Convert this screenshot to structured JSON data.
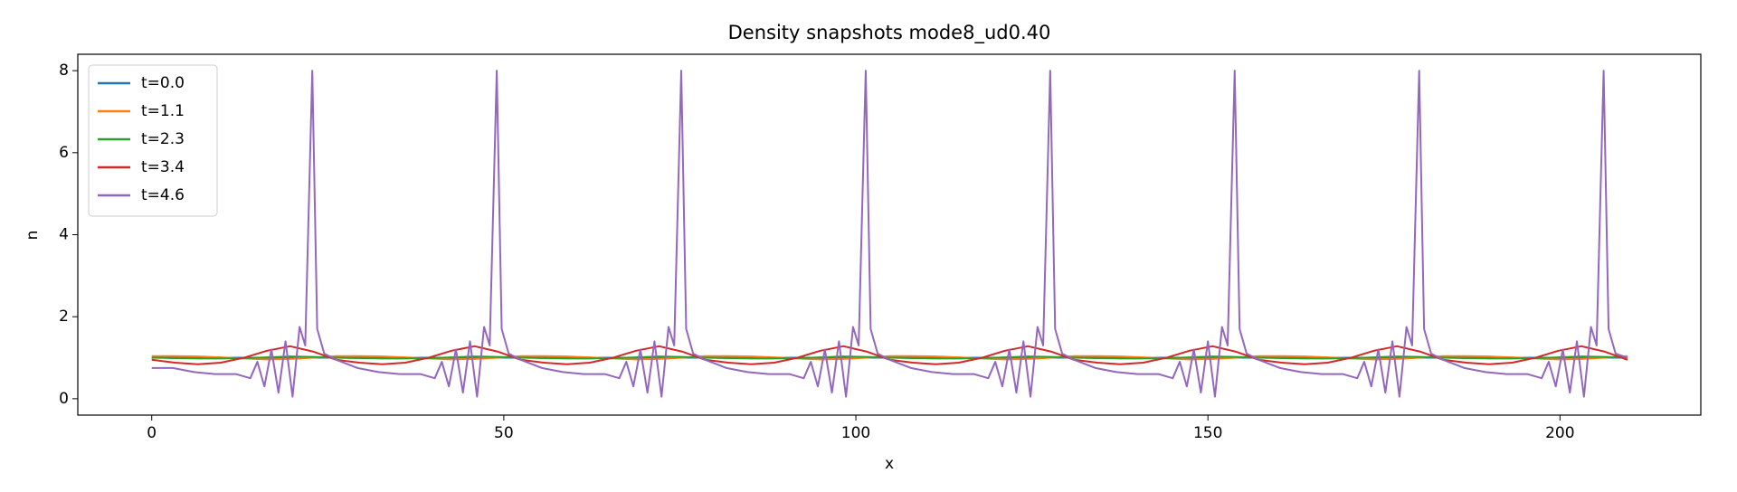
{
  "chart_data": {
    "type": "line",
    "title": "Density snapshots  mode8_ud0.40",
    "xlabel": "x",
    "ylabel": "n",
    "xlim": [
      -10.5,
      220
    ],
    "xticks": [
      0,
      50,
      100,
      150,
      200
    ],
    "ylim": [
      -0.4,
      8.4
    ],
    "yticks": [
      0,
      2,
      4,
      6,
      8
    ],
    "legend": "upper left",
    "grid": false,
    "series": [
      {
        "name": "t=0.0",
        "color": "#1f77b4",
        "x": [
          0,
          3.275,
          6.55,
          9.825,
          13.1,
          16.375,
          19.65,
          22.925,
          26.2,
          29.475,
          32.75,
          36.025,
          39.3,
          42.575,
          45.85,
          49.125,
          52.4,
          55.675,
          58.95,
          62.225,
          65.5,
          68.775,
          72.05,
          75.325,
          78.6,
          81.875,
          85.15,
          88.425,
          91.7,
          94.975,
          98.25,
          101.525,
          104.8,
          108.075,
          111.35,
          114.625,
          117.9,
          121.175,
          124.45,
          127.725,
          131,
          134.275,
          137.55,
          140.825,
          144.1,
          147.375,
          150.65,
          153.925,
          157.2,
          160.475,
          163.75,
          167.025,
          170.3,
          173.575,
          176.85,
          180.125,
          183.4,
          186.675,
          189.95,
          193.225,
          196.5,
          199.775,
          203.05,
          206.325,
          209.6
        ],
        "values": [
          1,
          1,
          1,
          1,
          1,
          1,
          1,
          1,
          1,
          1,
          1,
          1,
          1,
          1,
          1,
          1,
          1,
          1,
          1,
          1,
          1,
          1,
          1,
          1,
          1,
          1,
          1,
          1,
          1,
          1,
          1,
          1,
          1,
          1,
          1,
          1,
          1,
          1,
          1,
          1,
          1,
          1,
          1,
          1,
          1,
          1,
          1,
          1,
          1,
          1,
          1,
          1,
          1,
          1,
          1,
          1,
          1,
          1,
          1,
          1,
          1,
          1,
          1,
          1,
          1
        ]
      },
      {
        "name": "t=1.1",
        "color": "#ff7f0e",
        "x": [
          0,
          3.275,
          6.55,
          9.825,
          13.1,
          16.375,
          19.65,
          22.925,
          26.2,
          29.475,
          32.75,
          36.025,
          39.3,
          42.575,
          45.85,
          49.125,
          52.4,
          55.675,
          58.95,
          62.225,
          65.5,
          68.775,
          72.05,
          75.325,
          78.6,
          81.875,
          85.15,
          88.425,
          91.7,
          94.975,
          98.25,
          101.525,
          104.8,
          108.075,
          111.35,
          114.625,
          117.9,
          121.175,
          124.45,
          127.725,
          131,
          134.275,
          137.55,
          140.825,
          144.1,
          147.375,
          150.65,
          153.925,
          157.2,
          160.475,
          163.75,
          167.025,
          170.3,
          173.575,
          176.85,
          180.125,
          183.4,
          186.675,
          189.95,
          193.225,
          196.5,
          199.775,
          203.05,
          206.325,
          209.6
        ],
        "values": [
          1.04,
          1.04,
          1.03,
          1.01,
          0.98,
          0.96,
          0.97,
          1.0,
          1.04,
          1.04,
          1.03,
          1.01,
          0.98,
          0.96,
          0.97,
          1.0,
          1.04,
          1.04,
          1.03,
          1.01,
          0.98,
          0.96,
          0.97,
          1.0,
          1.04,
          1.04,
          1.03,
          1.01,
          0.98,
          0.96,
          0.97,
          1.0,
          1.04,
          1.04,
          1.03,
          1.01,
          0.98,
          0.96,
          0.97,
          1.0,
          1.04,
          1.04,
          1.03,
          1.01,
          0.98,
          0.96,
          0.97,
          1.0,
          1.04,
          1.04,
          1.03,
          1.01,
          0.98,
          0.96,
          0.97,
          1.0,
          1.04,
          1.04,
          1.03,
          1.01,
          0.98,
          0.96,
          0.97,
          1.0,
          1.04
        ]
      },
      {
        "name": "t=2.3",
        "color": "#2ca02c",
        "x": [
          0,
          3.275,
          6.55,
          9.825,
          13.1,
          16.375,
          19.65,
          22.925,
          26.2,
          29.475,
          32.75,
          36.025,
          39.3,
          42.575,
          45.85,
          49.125,
          52.4,
          55.675,
          58.95,
          62.225,
          65.5,
          68.775,
          72.05,
          75.325,
          78.6,
          81.875,
          85.15,
          88.425,
          91.7,
          94.975,
          98.25,
          101.525,
          104.8,
          108.075,
          111.35,
          114.625,
          117.9,
          121.175,
          124.45,
          127.725,
          131,
          134.275,
          137.55,
          140.825,
          144.1,
          147.375,
          150.65,
          153.925,
          157.2,
          160.475,
          163.75,
          167.025,
          170.3,
          173.575,
          176.85,
          180.125,
          183.4,
          186.675,
          189.95,
          193.225,
          196.5,
          199.775,
          203.05,
          206.325,
          209.6
        ],
        "values": [
          1.0,
          0.99,
          0.98,
          0.98,
          0.99,
          1.01,
          1.03,
          1.02,
          1.0,
          0.99,
          0.98,
          0.98,
          0.99,
          1.01,
          1.03,
          1.02,
          1.0,
          0.99,
          0.98,
          0.98,
          0.99,
          1.01,
          1.03,
          1.02,
          1.0,
          0.99,
          0.98,
          0.98,
          0.99,
          1.01,
          1.03,
          1.02,
          1.0,
          0.99,
          0.98,
          0.98,
          0.99,
          1.01,
          1.03,
          1.02,
          1.0,
          0.99,
          0.98,
          0.98,
          0.99,
          1.01,
          1.03,
          1.02,
          1.0,
          0.99,
          0.98,
          0.98,
          0.99,
          1.01,
          1.03,
          1.02,
          1.0,
          0.99,
          0.98,
          0.98,
          0.99,
          1.01,
          1.03,
          1.02,
          1.0
        ]
      },
      {
        "name": "t=3.4",
        "color": "#d62728",
        "x": [
          0,
          3.275,
          6.55,
          9.825,
          13.1,
          16.375,
          19.65,
          22.925,
          26.2,
          29.475,
          32.75,
          36.025,
          39.3,
          42.575,
          45.85,
          49.125,
          52.4,
          55.675,
          58.95,
          62.225,
          65.5,
          68.775,
          72.05,
          75.325,
          78.6,
          81.875,
          85.15,
          88.425,
          91.7,
          94.975,
          98.25,
          101.525,
          104.8,
          108.075,
          111.35,
          114.625,
          117.9,
          121.175,
          124.45,
          127.725,
          131,
          134.275,
          137.55,
          140.825,
          144.1,
          147.375,
          150.65,
          153.925,
          157.2,
          160.475,
          163.75,
          167.025,
          170.3,
          173.575,
          176.85,
          180.125,
          183.4,
          186.675,
          189.95,
          193.225,
          196.5,
          199.775,
          203.05,
          206.325,
          209.6
        ],
        "values": [
          0.95,
          0.88,
          0.84,
          0.88,
          1.0,
          1.17,
          1.28,
          1.15,
          0.95,
          0.88,
          0.84,
          0.88,
          1.0,
          1.17,
          1.28,
          1.15,
          0.95,
          0.88,
          0.84,
          0.88,
          1.0,
          1.17,
          1.28,
          1.15,
          0.95,
          0.88,
          0.84,
          0.88,
          1.0,
          1.17,
          1.28,
          1.15,
          0.95,
          0.88,
          0.84,
          0.88,
          1.0,
          1.17,
          1.28,
          1.15,
          0.95,
          0.88,
          0.84,
          0.88,
          1.0,
          1.17,
          1.28,
          1.15,
          0.95,
          0.88,
          0.84,
          0.88,
          1.0,
          1.17,
          1.28,
          1.15,
          0.95,
          0.88,
          0.84,
          0.88,
          1.0,
          1.17,
          1.28,
          1.15,
          0.95
        ]
      },
      {
        "name": "t=4.6",
        "color": "#9467bd",
        "x": [
          0,
          3,
          6,
          9,
          12,
          14,
          15,
          16,
          17,
          18,
          19,
          20,
          21,
          21.8,
          22.8,
          23.5,
          24.5,
          26.2,
          29.2,
          32.2,
          35.2,
          38.2,
          40.2,
          41.2,
          42.2,
          43.2,
          44.2,
          45.2,
          46.2,
          47.2,
          48,
          49,
          49.7,
          50.7,
          52.4,
          55.4,
          58.4,
          61.4,
          64.4,
          66.4,
          67.4,
          68.4,
          69.4,
          70.4,
          71.4,
          72.4,
          73.4,
          74.2,
          75.2,
          75.9,
          76.9,
          78.6,
          81.6,
          84.6,
          87.6,
          90.6,
          92.6,
          93.6,
          94.6,
          95.6,
          96.6,
          97.6,
          98.6,
          99.6,
          100.4,
          101.4,
          102.1,
          103.1,
          104.8,
          107.8,
          110.8,
          113.8,
          116.8,
          118.8,
          119.8,
          120.8,
          121.8,
          122.8,
          123.8,
          124.8,
          125.8,
          126.6,
          127.6,
          128.3,
          129.3,
          131,
          134,
          137,
          140,
          143,
          145,
          146,
          147,
          148,
          149,
          150,
          151,
          152,
          152.8,
          153.8,
          154.5,
          155.5,
          157.2,
          160.2,
          163.2,
          166.2,
          169.2,
          171.2,
          172.2,
          173.2,
          174.2,
          175.2,
          176.2,
          177.2,
          178.2,
          179,
          180,
          180.7,
          181.7,
          183.4,
          186.4,
          189.4,
          192.4,
          195.4,
          197.4,
          198.4,
          199.4,
          200.4,
          201.4,
          202.4,
          203.4,
          204.4,
          205.2,
          206.2,
          206.9,
          207.9,
          209.6
        ],
        "values": [
          0.75,
          0.75,
          0.65,
          0.6,
          0.6,
          0.5,
          0.9,
          0.3,
          1.2,
          0.15,
          1.4,
          0.05,
          1.75,
          1.3,
          8.0,
          1.7,
          1.1,
          0.95,
          0.75,
          0.65,
          0.6,
          0.6,
          0.5,
          0.9,
          0.3,
          1.2,
          0.15,
          1.4,
          0.05,
          1.75,
          1.3,
          8.0,
          1.7,
          1.1,
          0.95,
          0.75,
          0.65,
          0.6,
          0.6,
          0.5,
          0.9,
          0.3,
          1.2,
          0.15,
          1.4,
          0.05,
          1.75,
          1.3,
          8.0,
          1.7,
          1.1,
          0.95,
          0.75,
          0.65,
          0.6,
          0.6,
          0.5,
          0.9,
          0.3,
          1.2,
          0.15,
          1.4,
          0.05,
          1.75,
          1.3,
          8.0,
          1.7,
          1.1,
          0.95,
          0.75,
          0.65,
          0.6,
          0.6,
          0.5,
          0.9,
          0.3,
          1.2,
          0.15,
          1.4,
          0.05,
          1.75,
          1.3,
          8.0,
          1.7,
          1.1,
          0.95,
          0.75,
          0.65,
          0.6,
          0.6,
          0.5,
          0.9,
          0.3,
          1.2,
          0.15,
          1.4,
          0.05,
          1.75,
          1.3,
          8.0,
          1.7,
          1.1,
          0.95,
          0.75,
          0.65,
          0.6,
          0.6,
          0.5,
          0.9,
          0.3,
          1.2,
          0.15,
          1.4,
          0.05,
          1.75,
          1.3,
          8.0,
          1.7,
          1.1,
          0.95,
          0.75,
          0.65,
          0.6,
          0.6,
          0.5,
          0.9,
          0.3,
          1.2,
          0.15,
          1.4,
          0.05,
          1.75,
          1.3,
          8.0,
          1.7,
          1.1,
          1.0
        ]
      }
    ]
  }
}
